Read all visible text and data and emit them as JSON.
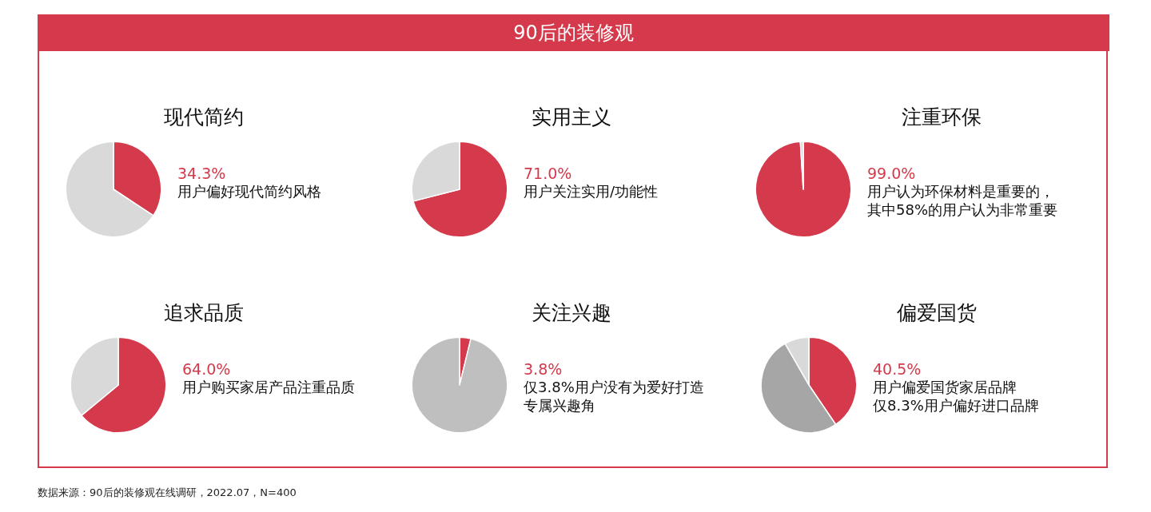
{
  "chart_data": [
    {
      "type": "other",
      "title": "90后的装修观",
      "annotations": [
        "数据来源：90后的装修观在线调研，2022.07，N=400"
      ]
    },
    {
      "type": "pie",
      "title": "现代简约",
      "categories": [
        null,
        null
      ],
      "values": [
        34.3,
        65.7
      ],
      "colors": [
        "#d43a4b",
        "#d9d9d9"
      ],
      "annotations": [
        "34.3%",
        "用户偏好现代简约风格"
      ]
    },
    {
      "type": "pie",
      "title": "实用主义",
      "categories": [
        null,
        null
      ],
      "values": [
        71.0,
        29.0
      ],
      "colors": [
        "#d43a4b",
        "#d9d9d9"
      ],
      "annotations": [
        "71.0%",
        "用户关注实用/功能性"
      ]
    },
    {
      "type": "pie",
      "title": "注重环保",
      "categories": [
        null,
        null
      ],
      "values": [
        99.0,
        1.0
      ],
      "colors": [
        "#d43a4b",
        "#d9d9d9"
      ],
      "annotations": [
        "99.0%",
        "用户认为环保材料是重要的，",
        "其中58%的用户认为非常重要"
      ]
    },
    {
      "type": "pie",
      "title": "追求品质",
      "categories": [
        null,
        null
      ],
      "values": [
        64.0,
        36.0
      ],
      "colors": [
        "#d43a4b",
        "#d9d9d9"
      ],
      "annotations": [
        "64.0%",
        "用户购买家居产品注重品质"
      ]
    },
    {
      "type": "pie",
      "title": "关注兴趣",
      "categories": [
        null,
        null
      ],
      "values": [
        3.8,
        96.2
      ],
      "colors": [
        "#d43a4b",
        "#bfbfbf"
      ],
      "annotations": [
        "3.8%",
        "仅3.8%用户没有为爱好打造",
        "专属兴趣角"
      ]
    },
    {
      "type": "pie",
      "title": "偏爱国货",
      "categories": [
        null,
        null,
        null
      ],
      "values": [
        40.5,
        51.2,
        8.3
      ],
      "colors": [
        "#d43a4b",
        "#a6a6a6",
        "#d9d9d9"
      ],
      "annotations": [
        "40.5%",
        "用户偏爱国货家居品牌",
        "仅8.3%用户偏好进口品牌"
      ]
    }
  ]
}
